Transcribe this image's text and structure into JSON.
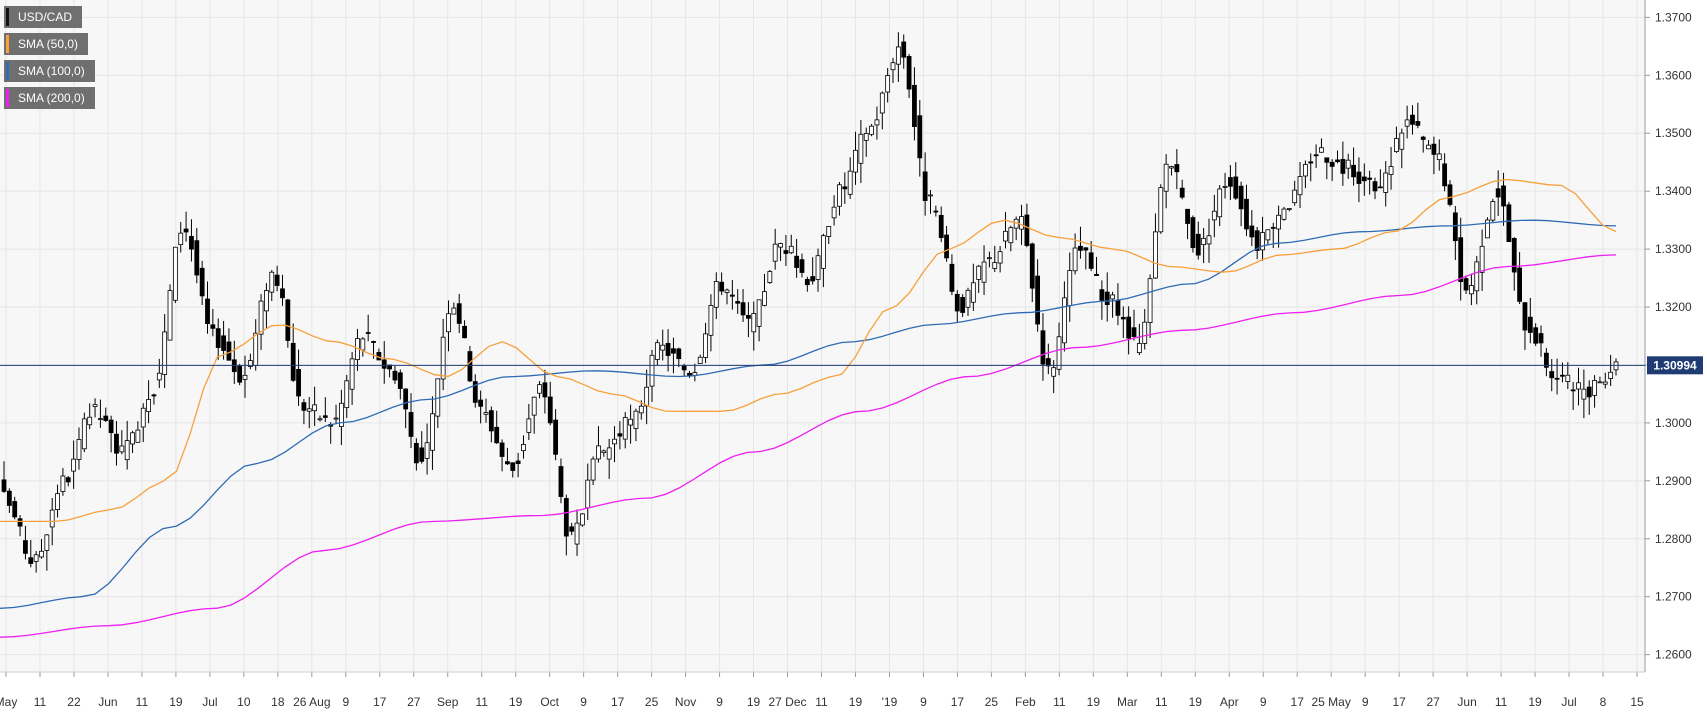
{
  "chart_data": {
    "type": "candlestick",
    "symbol": "USD/CAD",
    "timeframe": "daily",
    "ylim": [
      1.257,
      1.373
    ],
    "y_ticks": [
      "1.2600",
      "1.2700",
      "1.2800",
      "1.2900",
      "1.3000",
      "1.3100",
      "1.3200",
      "1.3300",
      "1.3400",
      "1.3500",
      "1.3600",
      "1.3700"
    ],
    "x_ticks": [
      "May",
      "11",
      "22",
      "Jun",
      "11",
      "19",
      "Jul",
      "10",
      "18",
      "26 Aug",
      "9",
      "17",
      "27",
      "Sep",
      "11",
      "19",
      "Oct",
      "9",
      "17",
      "25",
      "Nov",
      "9",
      "19",
      "27 Dec",
      "11",
      "19",
      "'19",
      "9",
      "17",
      "25",
      "Feb",
      "11",
      "19",
      "Mar",
      "11",
      "19",
      "Apr",
      "9",
      "17",
      "25 May",
      "9",
      "17",
      "27",
      "Jun",
      "11",
      "19",
      "Jul",
      "8",
      "15"
    ],
    "current_price": 1.30994,
    "current_price_label": "1.30994",
    "grid": true,
    "legend_position": "top-left",
    "colors": {
      "up_candle": "#ffffff",
      "down_candle": "#000000",
      "candle_outline": "#000000",
      "sma50": "#f7a03c",
      "sma100": "#2f6bb3",
      "sma200": "#ee1ff0",
      "price_line": "#1f3b73",
      "grid": "#e6e6e6",
      "plot_bg": "#f7f7f7"
    },
    "series": [
      {
        "name": "USD/CAD",
        "type": "candles"
      },
      {
        "name": "SMA (50,0)",
        "type": "line",
        "color": "#f7a03c"
      },
      {
        "name": "SMA (100,0)",
        "type": "line",
        "color": "#2f6bb3"
      },
      {
        "name": "SMA (200,0)",
        "type": "line",
        "color": "#ee1ff0"
      }
    ],
    "price_anchors": [
      1.287,
      1.276,
      1.29,
      1.302,
      1.295,
      1.306,
      1.334,
      1.315,
      1.308,
      1.326,
      1.303,
      1.3,
      1.315,
      1.309,
      1.293,
      1.321,
      1.302,
      1.292,
      1.306,
      1.28,
      1.295,
      1.3,
      1.313,
      1.309,
      1.324,
      1.317,
      1.331,
      1.325,
      1.34,
      1.351,
      1.365,
      1.338,
      1.32,
      1.328,
      1.335,
      1.309,
      1.33,
      1.321,
      1.313,
      1.345,
      1.33,
      1.342,
      1.331,
      1.338,
      1.347,
      1.344,
      1.34,
      1.352,
      1.346,
      1.323,
      1.34,
      1.317,
      1.308,
      1.305,
      1.31
    ],
    "sma50_anchors": [
      1.283,
      1.283,
      1.285,
      1.29,
      1.312,
      1.317,
      1.314,
      1.311,
      1.308,
      1.314,
      1.308,
      1.305,
      1.302,
      1.302,
      1.305,
      1.308,
      1.32,
      1.33,
      1.335,
      1.332,
      1.33,
      1.327,
      1.326,
      1.329,
      1.33,
      1.333,
      1.339,
      1.342,
      1.341,
      1.333
    ],
    "sma100_anchors": [
      1.268,
      1.27,
      1.282,
      1.293,
      1.3,
      1.304,
      1.308,
      1.309,
      1.308,
      1.31,
      1.314,
      1.317,
      1.319,
      1.321,
      1.324,
      1.331,
      1.333,
      1.334,
      1.335,
      1.334
    ],
    "sma200_anchors": [
      1.263,
      1.265,
      1.268,
      1.278,
      1.283,
      1.284,
      1.287,
      1.295,
      1.302,
      1.308,
      1.313,
      1.316,
      1.319,
      1.322,
      1.327,
      1.329
    ]
  }
}
